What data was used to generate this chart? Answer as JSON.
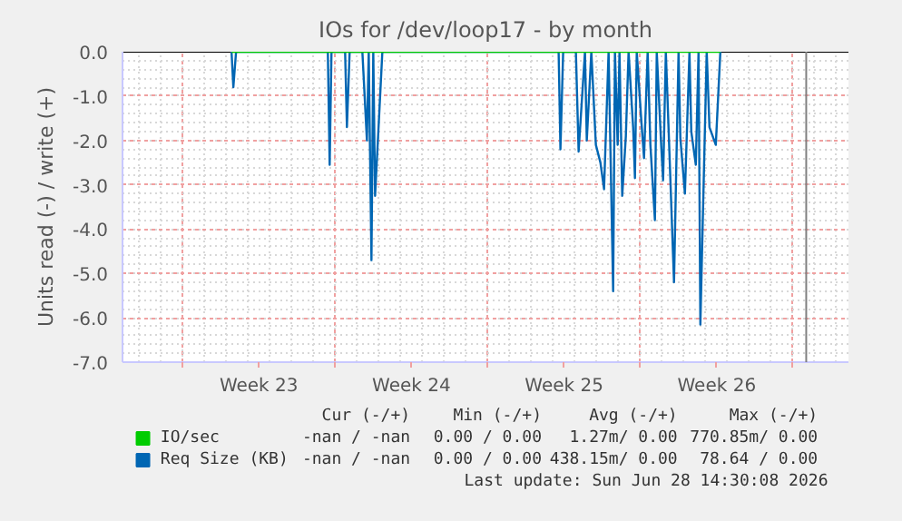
{
  "chart_data": {
    "type": "line",
    "title": "IOs for /dev/loop17 - by month",
    "ylabel": "Units read (-) / write (+)",
    "xlim": [
      "2026-05-28T06:00",
      "2026-06-30T13:00"
    ],
    "xticks": [
      {
        "value": "2026-05-31",
        "label": null
      },
      {
        "value": "2026-06-03T12:00",
        "label": "Week 23"
      },
      {
        "value": "2026-06-07",
        "label": null
      },
      {
        "value": "2026-06-10T12:00",
        "label": "Week 24"
      },
      {
        "value": "2026-06-14",
        "label": null
      },
      {
        "value": "2026-06-17T12:00",
        "label": "Week 25"
      },
      {
        "value": "2026-06-21",
        "label": null
      },
      {
        "value": "2026-06-24T12:00",
        "label": "Week 26"
      },
      {
        "value": "2026-06-28",
        "label": null
      }
    ],
    "ylim": [
      -7,
      0
    ],
    "yticks": [
      {
        "value": -7,
        "label": "-7.0"
      },
      {
        "value": -6,
        "label": "-6.0"
      },
      {
        "value": -5,
        "label": "-5.0"
      },
      {
        "value": -4,
        "label": "-4.0"
      },
      {
        "value": -3,
        "label": "-3.0"
      },
      {
        "value": -2,
        "label": "-2.0"
      },
      {
        "value": -1,
        "label": "-1.0"
      },
      {
        "value": 0,
        "label": "0.0"
      }
    ],
    "grid": true,
    "legend": "bottom",
    "line_style": "solid",
    "ref_lines": [
      {
        "axis": "x",
        "value": "2026-06-28T14:30",
        "label": null,
        "color": "#808080"
      }
    ],
    "series": [
      {
        "name": "IO/sec",
        "color": "#00cc00",
        "x": [
          "2026-06-02T06:00",
          "2026-06-24T16:00"
        ],
        "values": [
          0,
          0
        ]
      },
      {
        "name": "Req Size (KB)",
        "color": "#0066b3",
        "x": [
          "2026-06-02T06:00",
          "2026-06-02T08:00",
          "2026-06-02T11:00",
          "2026-06-06T16:00",
          "2026-06-06T18:00",
          "2026-06-06T20:00",
          "2026-06-07T11:00",
          "2026-06-07T13:00",
          "2026-06-07T16:00",
          "2026-06-08T06:00",
          "2026-06-08T11:00",
          "2026-06-08T13:00",
          "2026-06-08T16:00",
          "2026-06-08T18:00",
          "2026-06-08T20:00",
          "2026-06-09T04:00",
          "2026-06-17T06:00",
          "2026-06-17T08:00",
          "2026-06-17T11:00",
          "2026-06-18T01:00",
          "2026-06-18T04:00",
          "2026-06-18T11:00",
          "2026-06-18T13:00",
          "2026-06-18T18:00",
          "2026-06-18T23:00",
          "2026-06-19T04:00",
          "2026-06-19T08:00",
          "2026-06-19T13:00",
          "2026-06-19T18:00",
          "2026-06-19T20:00",
          "2026-06-19T23:00",
          "2026-06-20T01:00",
          "2026-06-20T04:00",
          "2026-06-20T08:00",
          "2026-06-20T11:00",
          "2026-06-20T16:00",
          "2026-06-20T18:00",
          "2026-06-20T20:00",
          "2026-06-21T01:00",
          "2026-06-21T04:00",
          "2026-06-21T08:00",
          "2026-06-21T11:00",
          "2026-06-21T16:00",
          "2026-06-21T18:00",
          "2026-06-21T23:00",
          "2026-06-22T01:00",
          "2026-06-22T04:00",
          "2026-06-22T08:00",
          "2026-06-22T13:00",
          "2026-06-22T18:00",
          "2026-06-22T20:00",
          "2026-06-23T01:00",
          "2026-06-23T06:00",
          "2026-06-23T08:00",
          "2026-06-23T13:00",
          "2026-06-23T16:00",
          "2026-06-23T18:00",
          "2026-06-24T01:00",
          "2026-06-24T04:00",
          "2026-06-24T11:00",
          "2026-06-24T16:00"
        ],
        "values": [
          0,
          -0.8,
          0,
          0,
          -2.55,
          0,
          0,
          -1.7,
          0,
          0,
          -2.0,
          0,
          -4.7,
          0,
          -3.25,
          0,
          0,
          -2.2,
          0,
          0,
          -2.25,
          0,
          -2.0,
          0,
          -2.1,
          -2.5,
          -3.1,
          0,
          -5.4,
          0,
          -2.1,
          0,
          -3.25,
          -1.9,
          0,
          -1.7,
          -2.85,
          0,
          -1.55,
          -2.4,
          0,
          -2.1,
          -3.8,
          0,
          -2.15,
          -2.9,
          0,
          -2.3,
          -5.2,
          0,
          -1.95,
          -3.2,
          0,
          -1.8,
          -2.55,
          0,
          -6.15,
          0,
          -1.7,
          -2.1,
          0
        ]
      }
    ],
    "annotations": [
      "Cur (-/+)",
      "Min (-/+)",
      "Avg (-/+)",
      "Max (-/+)",
      "-nan / -nan",
      "0.00 / 0.00",
      "1.27m/ 0.00",
      "770.85m/ 0.00",
      "-nan / -nan",
      "0.00 / 0.00",
      "438.15m/ 0.00",
      "78.64 / 0.00",
      "Last update: Sun Jun 28 14:30:08 2026"
    ]
  }
}
